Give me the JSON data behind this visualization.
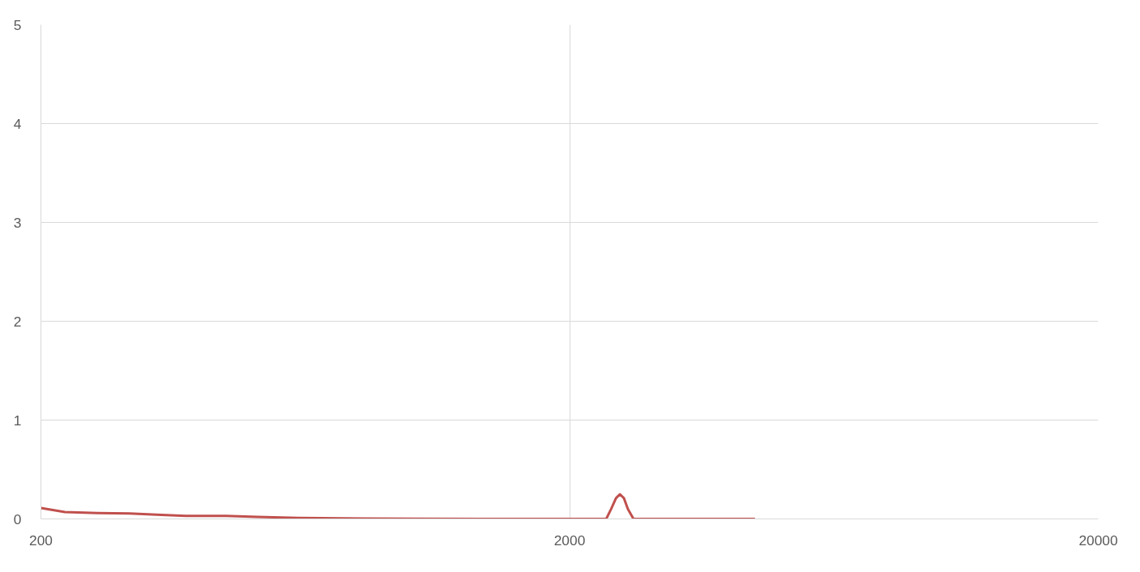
{
  "chart_data": {
    "type": "line",
    "log": "x",
    "grid": true,
    "marker": "none",
    "line_style": "solid",
    "xlim": [
      200,
      20000
    ],
    "xticks": [
      200,
      2000,
      20000
    ],
    "ylim": [
      0,
      5
    ],
    "yticks": [
      0,
      1,
      2,
      3,
      4,
      5
    ],
    "series": [
      {
        "color": "#c0504d",
        "x": [
          200,
          222,
          256,
          294,
          338,
          376,
          448,
          514,
          614,
          811,
          1372,
          2346,
          2396,
          2448,
          2490,
          2534,
          2578,
          2642,
          4484
        ],
        "values": [
          0.11,
          0.07,
          0.06,
          0.055,
          0.04,
          0.03,
          0.03,
          0.02,
          0.01,
          0.005,
          0,
          0,
          0.1,
          0.21,
          0.25,
          0.21,
          0.1,
          0,
          0
        ]
      }
    ]
  }
}
